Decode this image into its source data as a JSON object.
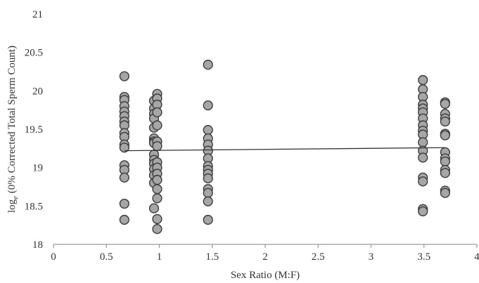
{
  "chart_data": {
    "type": "scatter",
    "xlabel": "Sex Ratio (M:F)",
    "ylabel_parts": {
      "prefix": "log",
      "subscript": "e",
      "suffix": " (0% Corrected Total Sperm Count)"
    },
    "xlim": [
      0,
      4
    ],
    "ylim": [
      18,
      21
    ],
    "x_ticks": [
      "0",
      "0.5",
      "1",
      "1.5",
      "2",
      "2.5",
      "3",
      "3.5",
      "4"
    ],
    "y_ticks": [
      "18",
      "18.5",
      "19",
      "19.5",
      "20",
      "20.5",
      "21"
    ],
    "grid": false,
    "legend": "none",
    "colors": {
      "marker_fill": "#a6a6a6",
      "marker_edge": "#3a3a3a",
      "trend": "#333333",
      "axis": "#9a9a9a"
    },
    "trendline": {
      "x": [
        0.67,
        3.7
      ],
      "y": [
        19.22,
        19.26
      ]
    },
    "points": [
      {
        "x": 0.67,
        "y": 20.19
      },
      {
        "x": 0.67,
        "y": 19.92
      },
      {
        "x": 0.67,
        "y": 19.88
      },
      {
        "x": 0.67,
        "y": 19.8
      },
      {
        "x": 0.67,
        "y": 19.73
      },
      {
        "x": 0.67,
        "y": 19.67
      },
      {
        "x": 0.67,
        "y": 19.6
      },
      {
        "x": 0.67,
        "y": 19.55
      },
      {
        "x": 0.67,
        "y": 19.45
      },
      {
        "x": 0.67,
        "y": 19.4
      },
      {
        "x": 0.67,
        "y": 19.3
      },
      {
        "x": 0.67,
        "y": 19.26
      },
      {
        "x": 0.67,
        "y": 19.03
      },
      {
        "x": 0.67,
        "y": 18.97
      },
      {
        "x": 0.67,
        "y": 18.87
      },
      {
        "x": 0.67,
        "y": 18.53
      },
      {
        "x": 0.67,
        "y": 18.32
      },
      {
        "x": 0.95,
        "y": 19.87
      },
      {
        "x": 0.95,
        "y": 19.77
      },
      {
        "x": 0.95,
        "y": 19.7
      },
      {
        "x": 0.95,
        "y": 19.64
      },
      {
        "x": 0.95,
        "y": 19.52
      },
      {
        "x": 0.95,
        "y": 19.38
      },
      {
        "x": 0.95,
        "y": 19.34
      },
      {
        "x": 0.95,
        "y": 19.32
      },
      {
        "x": 0.95,
        "y": 19.17
      },
      {
        "x": 0.95,
        "y": 19.1
      },
      {
        "x": 0.95,
        "y": 19.05
      },
      {
        "x": 0.95,
        "y": 18.98
      },
      {
        "x": 0.95,
        "y": 18.9
      },
      {
        "x": 0.95,
        "y": 18.8
      },
      {
        "x": 0.95,
        "y": 18.47
      },
      {
        "x": 0.98,
        "y": 19.96
      },
      {
        "x": 0.98,
        "y": 19.9
      },
      {
        "x": 0.98,
        "y": 19.82
      },
      {
        "x": 0.98,
        "y": 19.72
      },
      {
        "x": 0.98,
        "y": 19.55
      },
      {
        "x": 0.98,
        "y": 19.34
      },
      {
        "x": 0.98,
        "y": 19.28
      },
      {
        "x": 0.98,
        "y": 19.07
      },
      {
        "x": 0.98,
        "y": 19.0
      },
      {
        "x": 0.98,
        "y": 18.92
      },
      {
        "x": 0.98,
        "y": 18.84
      },
      {
        "x": 0.98,
        "y": 18.72
      },
      {
        "x": 0.98,
        "y": 18.6
      },
      {
        "x": 0.98,
        "y": 18.33
      },
      {
        "x": 0.98,
        "y": 18.2
      },
      {
        "x": 1.46,
        "y": 20.34
      },
      {
        "x": 1.46,
        "y": 19.81
      },
      {
        "x": 1.46,
        "y": 19.49
      },
      {
        "x": 1.46,
        "y": 19.38
      },
      {
        "x": 1.46,
        "y": 19.3
      },
      {
        "x": 1.46,
        "y": 19.22
      },
      {
        "x": 1.46,
        "y": 19.12
      },
      {
        "x": 1.46,
        "y": 19.02
      },
      {
        "x": 1.46,
        "y": 18.97
      },
      {
        "x": 1.46,
        "y": 18.92
      },
      {
        "x": 1.46,
        "y": 18.86
      },
      {
        "x": 1.46,
        "y": 18.72
      },
      {
        "x": 1.46,
        "y": 18.67
      },
      {
        "x": 1.46,
        "y": 18.56
      },
      {
        "x": 1.46,
        "y": 18.32
      },
      {
        "x": 3.49,
        "y": 20.14
      },
      {
        "x": 3.49,
        "y": 20.02
      },
      {
        "x": 3.49,
        "y": 19.92
      },
      {
        "x": 3.49,
        "y": 19.82
      },
      {
        "x": 3.49,
        "y": 19.77
      },
      {
        "x": 3.49,
        "y": 19.72
      },
      {
        "x": 3.49,
        "y": 19.64
      },
      {
        "x": 3.49,
        "y": 19.55
      },
      {
        "x": 3.49,
        "y": 19.48
      },
      {
        "x": 3.49,
        "y": 19.43
      },
      {
        "x": 3.49,
        "y": 19.33
      },
      {
        "x": 3.49,
        "y": 19.22
      },
      {
        "x": 3.49,
        "y": 19.13
      },
      {
        "x": 3.49,
        "y": 18.87
      },
      {
        "x": 3.49,
        "y": 18.82
      },
      {
        "x": 3.49,
        "y": 18.46
      },
      {
        "x": 3.49,
        "y": 18.43
      },
      {
        "x": 3.7,
        "y": 19.85
      },
      {
        "x": 3.7,
        "y": 19.83
      },
      {
        "x": 3.7,
        "y": 19.7
      },
      {
        "x": 3.7,
        "y": 19.64
      },
      {
        "x": 3.7,
        "y": 19.6
      },
      {
        "x": 3.7,
        "y": 19.44
      },
      {
        "x": 3.7,
        "y": 19.42
      },
      {
        "x": 3.7,
        "y": 19.2
      },
      {
        "x": 3.7,
        "y": 19.12
      },
      {
        "x": 3.7,
        "y": 19.08
      },
      {
        "x": 3.7,
        "y": 18.97
      },
      {
        "x": 3.7,
        "y": 18.93
      },
      {
        "x": 3.7,
        "y": 18.7
      },
      {
        "x": 3.7,
        "y": 18.67
      }
    ]
  }
}
